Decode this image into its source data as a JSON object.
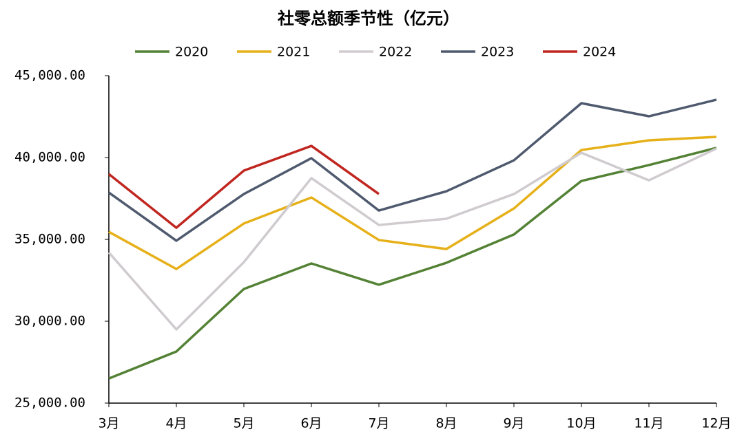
{
  "chart_data": {
    "type": "line",
    "title": "社零总额季节性（亿元）",
    "categories": [
      "3月",
      "4月",
      "5月",
      "6月",
      "7月",
      "8月",
      "9月",
      "10月",
      "11月",
      "12月"
    ],
    "series": [
      {
        "name": "2020",
        "color": "#548235",
        "values": [
          26500,
          28150,
          31970,
          33530,
          32230,
          33570,
          35300,
          38570,
          39540,
          40590
        ]
      },
      {
        "name": "2021",
        "color": "#e6b019",
        "values": [
          35460,
          33190,
          35970,
          37560,
          34960,
          34410,
          36890,
          40460,
          41050,
          41260
        ]
      },
      {
        "name": "2022",
        "color": "#d0cbcf",
        "values": [
          34200,
          29500,
          33610,
          38740,
          35880,
          36260,
          37770,
          40290,
          38610,
          40550
        ]
      },
      {
        "name": "2023",
        "color": "#4f5a6e",
        "values": [
          37860,
          34920,
          37770,
          39960,
          36760,
          37940,
          39830,
          43320,
          42520,
          43530
        ]
      },
      {
        "name": "2024",
        "color": "#c0261f",
        "values": [
          38990,
          35710,
          39200,
          40710,
          37770,
          null,
          null,
          null,
          null,
          null
        ]
      }
    ],
    "ylim": [
      25000,
      45000
    ],
    "yticks": [
      {
        "value": 25000,
        "label": "25,000.00"
      },
      {
        "value": 30000,
        "label": "30,000.00"
      },
      {
        "value": 35000,
        "label": "35,000.00"
      },
      {
        "value": 40000,
        "label": "40,000.00"
      },
      {
        "value": 45000,
        "label": "45,000.00"
      }
    ],
    "legend": "top"
  }
}
